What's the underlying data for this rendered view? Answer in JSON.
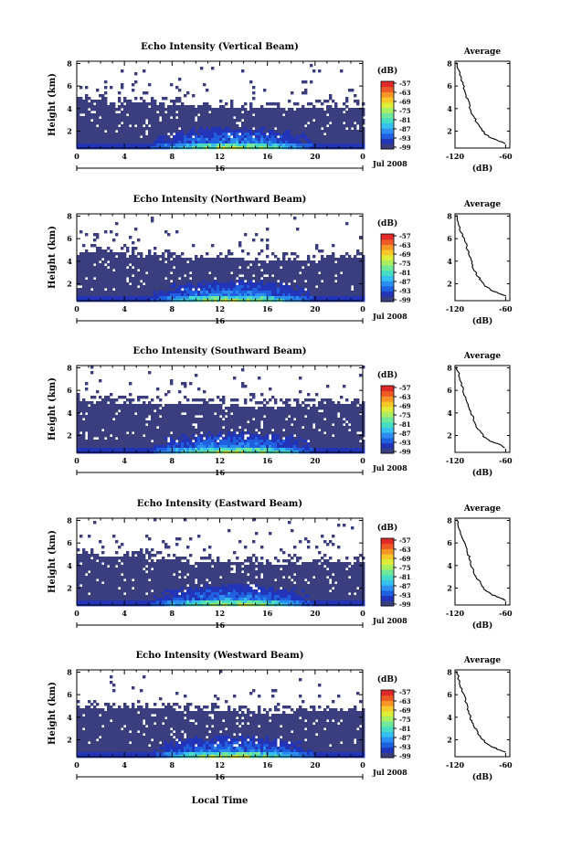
{
  "figure": {
    "xlabel": "Local Time",
    "date_label": "Jul 2008",
    "day_label": "16",
    "colorbar_unit": "(dB)",
    "colorbar_ticks": [
      "-57",
      "-63",
      "-69",
      "-75",
      "-81",
      "-87",
      "-93",
      "-99"
    ],
    "colors": [
      "#3b3e7e",
      "#2234b8",
      "#1f5fe0",
      "#2b8ef0",
      "#35c0f0",
      "#46dcc6",
      "#6fe89a",
      "#a8ef62",
      "#e0ec3a",
      "#f7c82a",
      "#f79626",
      "#ee5a25",
      "#e02a2a"
    ],
    "avg_title": "Average",
    "avg_xlabel": "(dB)"
  },
  "chart_data": [
    {
      "type": "heatmap",
      "title": "Echo Intensity (Vertical Beam)",
      "ylabel": "Height (km)",
      "x_ticks": [
        "0",
        "4",
        "8",
        "12",
        "16",
        "20",
        "0"
      ],
      "y_ticks": [
        "2",
        "4",
        "6",
        "8"
      ],
      "xlim": [
        0,
        24
      ],
      "ylim": [
        0.5,
        8.2
      ],
      "echo_top_km": [
        4.9,
        4.7,
        4.5,
        4.2,
        4.1,
        4.2,
        4.3
      ],
      "z_range_db": [
        -99,
        -57
      ]
    },
    {
      "type": "line",
      "title": "Average",
      "xlabel": "(dB)",
      "x_ticks": [
        "-120",
        "-60"
      ],
      "y_ticks": [
        "2",
        "4",
        "6",
        "8"
      ],
      "xlim": [
        -120,
        -55
      ],
      "ylim": [
        0.5,
        8.2
      ],
      "x": [
        -118,
        -115,
        -112,
        -109,
        -106,
        -103,
        -101,
        -98,
        -94,
        -90,
        -85,
        -77,
        -67,
        -60
      ],
      "y": [
        8.1,
        7.2,
        6.5,
        5.8,
        5.0,
        4.4,
        3.8,
        3.3,
        2.8,
        2.3,
        1.8,
        1.4,
        1.1,
        0.9
      ]
    },
    {
      "type": "heatmap",
      "title": "Echo Intensity (Northward Beam)",
      "ylabel": "Height (km)",
      "x_ticks": [
        "0",
        "4",
        "8",
        "12",
        "16",
        "20",
        "0"
      ],
      "y_ticks": [
        "2",
        "4",
        "6",
        "8"
      ],
      "xlim": [
        0,
        24
      ],
      "ylim": [
        0.5,
        8.2
      ],
      "echo_top_km": [
        5.0,
        4.8,
        4.6,
        4.4,
        4.2,
        4.3,
        4.5
      ],
      "z_range_db": [
        -99,
        -57
      ]
    },
    {
      "type": "line",
      "title": "Average",
      "xlabel": "(dB)",
      "x_ticks": [
        "-120",
        "-60"
      ],
      "y_ticks": [
        "2",
        "4",
        "6",
        "8"
      ],
      "xlim": [
        -120,
        -55
      ],
      "ylim": [
        0.5,
        8.2
      ],
      "x": [
        -118,
        -115,
        -112,
        -108,
        -105,
        -102,
        -100,
        -97,
        -93,
        -89,
        -84,
        -76,
        -66,
        -60
      ],
      "y": [
        8.1,
        7.2,
        6.4,
        5.7,
        5.0,
        4.4,
        3.8,
        3.2,
        2.7,
        2.3,
        1.8,
        1.4,
        1.1,
        0.9
      ]
    },
    {
      "type": "heatmap",
      "title": "Echo Intensity (Southward Beam)",
      "ylabel": "Height (km)",
      "x_ticks": [
        "0",
        "4",
        "8",
        "12",
        "16",
        "20",
        "0"
      ],
      "y_ticks": [
        "2",
        "4",
        "6",
        "8"
      ],
      "xlim": [
        0,
        24
      ],
      "ylim": [
        0.5,
        8.2
      ],
      "echo_top_km": [
        5.2,
        5.0,
        4.9,
        4.8,
        4.7,
        4.8,
        4.9
      ],
      "z_range_db": [
        -99,
        -57
      ]
    },
    {
      "type": "line",
      "title": "Average",
      "xlabel": "(dB)",
      "x_ticks": [
        "-120",
        "-60"
      ],
      "y_ticks": [
        "2",
        "4",
        "6",
        "8"
      ],
      "xlim": [
        -120,
        -55
      ],
      "ylim": [
        0.5,
        8.2
      ],
      "x": [
        -118,
        -115,
        -112,
        -110,
        -107,
        -104,
        -101,
        -98,
        -95,
        -91,
        -86,
        -78,
        -68,
        -60
      ],
      "y": [
        8.1,
        7.3,
        6.6,
        5.9,
        5.2,
        4.6,
        4.0,
        3.4,
        2.9,
        2.4,
        1.9,
        1.5,
        1.2,
        0.9
      ]
    },
    {
      "type": "heatmap",
      "title": "Echo Intensity (Eastward Beam)",
      "ylabel": "Height (km)",
      "x_ticks": [
        "0",
        "4",
        "8",
        "12",
        "16",
        "20",
        "0"
      ],
      "y_ticks": [
        "2",
        "4",
        "6",
        "8"
      ],
      "xlim": [
        0,
        24
      ],
      "ylim": [
        0.5,
        8.2
      ],
      "echo_top_km": [
        5.1,
        4.9,
        4.6,
        4.4,
        4.2,
        4.3,
        4.4
      ],
      "z_range_db": [
        -99,
        -57
      ]
    },
    {
      "type": "line",
      "title": "Average",
      "xlabel": "(dB)",
      "x_ticks": [
        "-120",
        "-60"
      ],
      "y_ticks": [
        "2",
        "4",
        "6",
        "8"
      ],
      "xlim": [
        -120,
        -55
      ],
      "ylim": [
        0.5,
        8.2
      ],
      "x": [
        -118,
        -115,
        -112,
        -108,
        -105,
        -102,
        -100,
        -97,
        -93,
        -89,
        -84,
        -76,
        -66,
        -60
      ],
      "y": [
        8.1,
        7.2,
        6.5,
        5.8,
        5.1,
        4.5,
        3.9,
        3.3,
        2.8,
        2.3,
        1.8,
        1.4,
        1.1,
        0.9
      ]
    },
    {
      "type": "heatmap",
      "title": "Echo Intensity (Westward Beam)",
      "ylabel": "Height (km)",
      "x_ticks": [
        "0",
        "4",
        "8",
        "12",
        "16",
        "20",
        "0"
      ],
      "y_ticks": [
        "2",
        "4",
        "6",
        "8"
      ],
      "xlim": [
        0,
        24
      ],
      "ylim": [
        0.5,
        8.2
      ],
      "echo_top_km": [
        5.0,
        4.9,
        4.8,
        4.6,
        4.5,
        4.6,
        4.7
      ],
      "z_range_db": [
        -99,
        -57
      ]
    },
    {
      "type": "line",
      "title": "Average",
      "xlabel": "(dB)",
      "x_ticks": [
        "-120",
        "-60"
      ],
      "y_ticks": [
        "2",
        "4",
        "6",
        "8"
      ],
      "xlim": [
        -120,
        -55
      ],
      "ylim": [
        0.5,
        8.2
      ],
      "x": [
        -118,
        -115,
        -112,
        -109,
        -106,
        -103,
        -101,
        -98,
        -94,
        -90,
        -85,
        -77,
        -67,
        -60
      ],
      "y": [
        8.1,
        7.2,
        6.5,
        5.8,
        5.0,
        4.4,
        3.8,
        3.3,
        2.8,
        2.3,
        1.8,
        1.4,
        1.1,
        0.9
      ]
    }
  ]
}
